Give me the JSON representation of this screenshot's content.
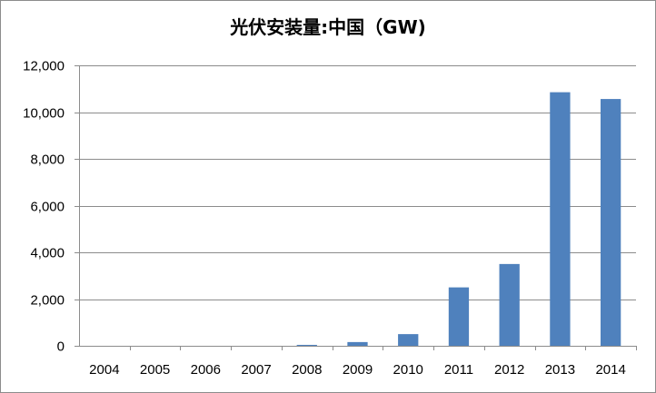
{
  "chart_data": {
    "type": "bar",
    "title": "光伏安装量:中国（GW)",
    "xlabel": "",
    "ylabel": "",
    "categories": [
      "2004",
      "2005",
      "2006",
      "2007",
      "2008",
      "2009",
      "2010",
      "2011",
      "2012",
      "2013",
      "2014"
    ],
    "values": [
      0,
      0,
      0,
      0,
      40,
      160,
      500,
      2500,
      3500,
      10850,
      10560
    ],
    "ylim": [
      0,
      12000
    ],
    "yticks": [
      0,
      2000,
      4000,
      6000,
      8000,
      10000,
      12000
    ],
    "ytick_labels": [
      "0",
      "2,000",
      "4,000",
      "6,000",
      "8,000",
      "10,000",
      "12,000"
    ],
    "grid": true,
    "legend": "none",
    "bar_color": "#4f81bd",
    "grid_color": "#8c8c8c"
  }
}
